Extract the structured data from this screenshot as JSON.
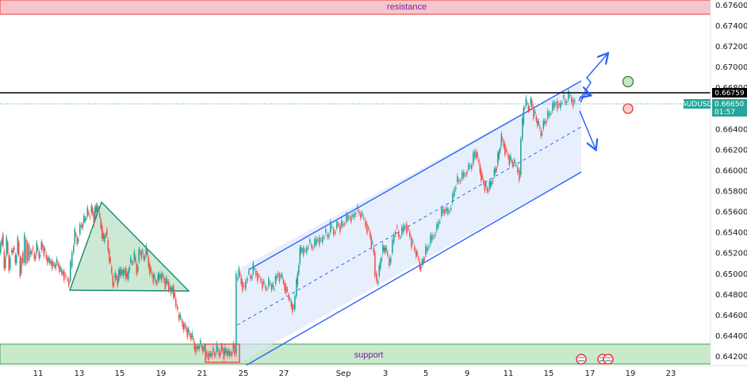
{
  "chart_data": {
    "type": "candlestick",
    "symbol": "AUDUSD",
    "price_axis": {
      "ticks": [
        "0.67600",
        "0.67400",
        "0.67200",
        "0.67000",
        "0.66800",
        "0.66600",
        "0.66400",
        "0.66200",
        "0.66000",
        "0.65800",
        "0.65600",
        "0.65400",
        "0.65200",
        "0.65000",
        "0.64800",
        "0.64600",
        "0.64400",
        "0.64200"
      ],
      "range": [
        0.6414,
        0.6769
      ]
    },
    "time_axis": {
      "ticks": [
        "11",
        "13",
        "15",
        "19",
        "21",
        "25",
        "27",
        "Sep",
        "3",
        "5",
        "9",
        "11",
        "15",
        "17",
        "19",
        "23"
      ]
    },
    "last_price": {
      "symbol": "AUDUSD",
      "value": 0.6665,
      "label": "0.66650",
      "countdown": "01:57"
    },
    "level_line": {
      "value": 0.66759,
      "label": "0.66759"
    },
    "zones": [
      {
        "name": "resistance",
        "label": "resistance",
        "from": 0.6752,
        "to": 0.677,
        "color": "#f7c5cc"
      },
      {
        "name": "support",
        "label": "support",
        "from": 0.6416,
        "to": 0.6434,
        "color": "#c9e9cc"
      }
    ],
    "series_path": [
      [
        0,
        0.652
      ],
      [
        3,
        0.6538
      ],
      [
        6,
        0.6505
      ],
      [
        9,
        0.653
      ],
      [
        12,
        0.6505
      ],
      [
        14,
        0.652
      ],
      [
        17,
        0.6525
      ],
      [
        20,
        0.651
      ],
      [
        23,
        0.653
      ],
      [
        26,
        0.65
      ],
      [
        28,
        0.652
      ],
      [
        30,
        0.651
      ],
      [
        32,
        0.6533
      ],
      [
        34,
        0.6512
      ],
      [
        36,
        0.6527
      ],
      [
        38,
        0.6518
      ],
      [
        41,
        0.6525
      ],
      [
        44,
        0.6514
      ],
      [
        47,
        0.6525
      ],
      [
        50,
        0.6517
      ],
      [
        53,
        0.6528
      ],
      [
        56,
        0.6522
      ],
      [
        59,
        0.6515
      ],
      [
        62,
        0.651
      ],
      [
        65,
        0.6512
      ],
      [
        68,
        0.6507
      ],
      [
        71,
        0.651
      ],
      [
        74,
        0.6508
      ],
      [
        77,
        0.65
      ],
      [
        80,
        0.6502
      ],
      [
        84,
        0.6495
      ],
      [
        88,
        0.6493
      ],
      [
        92,
        0.652
      ],
      [
        95,
        0.6538
      ],
      [
        98,
        0.6531
      ],
      [
        102,
        0.6545
      ],
      [
        105,
        0.6549
      ],
      [
        108,
        0.6553
      ],
      [
        111,
        0.6559
      ],
      [
        113,
        0.6555
      ],
      [
        116,
        0.6563
      ],
      [
        119,
        0.6552
      ],
      [
        122,
        0.6566
      ],
      [
        125,
        0.6558
      ],
      [
        128,
        0.6546
      ],
      [
        131,
        0.6531
      ],
      [
        134,
        0.6542
      ],
      [
        137,
        0.6522
      ],
      [
        140,
        0.6506
      ],
      [
        143,
        0.649
      ],
      [
        146,
        0.6498
      ],
      [
        149,
        0.6493
      ],
      [
        152,
        0.6504
      ],
      [
        155,
        0.6497
      ],
      [
        158,
        0.6505
      ],
      [
        161,
        0.6494
      ],
      [
        164,
        0.6511
      ],
      [
        167,
        0.651
      ],
      [
        170,
        0.6516
      ],
      [
        173,
        0.6502
      ],
      [
        176,
        0.6521
      ],
      [
        179,
        0.652
      ],
      [
        182,
        0.6514
      ],
      [
        185,
        0.6522
      ],
      [
        188,
        0.6509
      ],
      [
        191,
        0.65
      ],
      [
        194,
        0.6496
      ],
      [
        197,
        0.6491
      ],
      [
        200,
        0.6494
      ],
      [
        203,
        0.65
      ],
      [
        206,
        0.6496
      ],
      [
        209,
        0.649
      ],
      [
        212,
        0.6492
      ],
      [
        215,
        0.648
      ],
      [
        218,
        0.6488
      ],
      [
        221,
        0.6475
      ],
      [
        223,
        0.6468
      ],
      [
        225,
        0.646
      ],
      [
        228,
        0.6455
      ],
      [
        231,
        0.6451
      ],
      [
        234,
        0.6448
      ],
      [
        237,
        0.6443
      ],
      [
        240,
        0.644
      ],
      [
        243,
        0.6437
      ],
      [
        246,
        0.6429
      ],
      [
        249,
        0.6427
      ],
      [
        252,
        0.6432
      ],
      [
        255,
        0.6428
      ],
      [
        258,
        0.6425
      ],
      [
        262,
        0.6422
      ],
      [
        265,
        0.642
      ],
      [
        268,
        0.6425
      ],
      [
        271,
        0.6421
      ],
      [
        274,
        0.6427
      ],
      [
        277,
        0.6423
      ],
      [
        280,
        0.6428
      ],
      [
        283,
        0.6422
      ],
      [
        286,
        0.6425
      ],
      [
        289,
        0.642
      ],
      [
        292,
        0.6424
      ],
      [
        295,
        0.643
      ],
      [
        297,
        0.6422
      ],
      [
        299,
        0.6495
      ],
      [
        302,
        0.65
      ],
      [
        305,
        0.6492
      ],
      [
        309,
        0.6485
      ],
      [
        313,
        0.65
      ],
      [
        317,
        0.6495
      ],
      [
        320,
        0.6505
      ],
      [
        324,
        0.65
      ],
      [
        328,
        0.6495
      ],
      [
        332,
        0.649
      ],
      [
        336,
        0.6485
      ],
      [
        340,
        0.649
      ],
      [
        345,
        0.6485
      ],
      [
        350,
        0.65
      ],
      [
        355,
        0.6496
      ],
      [
        360,
        0.6488
      ],
      [
        365,
        0.6475
      ],
      [
        368,
        0.647
      ],
      [
        371,
        0.6465
      ],
      [
        373,
        0.6478
      ],
      [
        376,
        0.65
      ],
      [
        379,
        0.652
      ],
      [
        382,
        0.6525
      ],
      [
        386,
        0.652
      ],
      [
        390,
        0.653
      ],
      [
        394,
        0.6525
      ],
      [
        398,
        0.6528
      ],
      [
        402,
        0.6535
      ],
      [
        406,
        0.653
      ],
      [
        410,
        0.654
      ],
      [
        414,
        0.6535
      ],
      [
        418,
        0.6545
      ],
      [
        422,
        0.654
      ],
      [
        426,
        0.6548
      ],
      [
        430,
        0.6545
      ],
      [
        434,
        0.6548
      ],
      [
        438,
        0.6552
      ],
      [
        442,
        0.6556
      ],
      [
        446,
        0.6554
      ],
      [
        450,
        0.6562
      ],
      [
        454,
        0.6558
      ],
      [
        458,
        0.6554
      ],
      [
        462,
        0.6548
      ],
      [
        466,
        0.654
      ],
      [
        469,
        0.653
      ],
      [
        472,
        0.652
      ],
      [
        474,
        0.65
      ],
      [
        476,
        0.649
      ],
      [
        479,
        0.6505
      ],
      [
        482,
        0.652
      ],
      [
        485,
        0.6525
      ],
      [
        488,
        0.652
      ],
      [
        492,
        0.651
      ],
      [
        496,
        0.653
      ],
      [
        500,
        0.6545
      ],
      [
        504,
        0.6535
      ],
      [
        508,
        0.654
      ],
      [
        512,
        0.6548
      ],
      [
        516,
        0.654
      ],
      [
        520,
        0.653
      ],
      [
        524,
        0.6522
      ],
      [
        527,
        0.6515
      ],
      [
        530,
        0.6507
      ],
      [
        533,
        0.651
      ],
      [
        536,
        0.6518
      ],
      [
        540,
        0.6525
      ],
      [
        544,
        0.6532
      ],
      [
        548,
        0.6538
      ],
      [
        552,
        0.6545
      ],
      [
        556,
        0.6555
      ],
      [
        560,
        0.6562
      ],
      [
        564,
        0.6558
      ],
      [
        568,
        0.6562
      ],
      [
        572,
        0.6575
      ],
      [
        576,
        0.6588
      ],
      [
        580,
        0.659
      ],
      [
        584,
        0.6593
      ],
      [
        588,
        0.6598
      ],
      [
        592,
        0.6603
      ],
      [
        596,
        0.6606
      ],
      [
        600,
        0.6618
      ],
      [
        603,
        0.661
      ],
      [
        606,
        0.66
      ],
      [
        609,
        0.659
      ],
      [
        612,
        0.6585
      ],
      [
        615,
        0.658
      ],
      [
        618,
        0.6584
      ],
      [
        621,
        0.659
      ],
      [
        624,
        0.6598
      ],
      [
        627,
        0.6605
      ],
      [
        630,
        0.6618
      ],
      [
        633,
        0.663
      ],
      [
        636,
        0.6625
      ],
      [
        640,
        0.6615
      ],
      [
        643,
        0.661
      ],
      [
        646,
        0.6608
      ],
      [
        650,
        0.6605
      ],
      [
        654,
        0.66
      ],
      [
        656,
        0.6595
      ],
      [
        658,
        0.663
      ],
      [
        661,
        0.666
      ],
      [
        664,
        0.6665
      ],
      [
        667,
        0.666
      ],
      [
        670,
        0.6667
      ],
      [
        674,
        0.6655
      ],
      [
        677,
        0.6648
      ],
      [
        680,
        0.6642
      ],
      [
        683,
        0.6635
      ],
      [
        686,
        0.6645
      ],
      [
        690,
        0.665
      ],
      [
        694,
        0.6655
      ],
      [
        698,
        0.666
      ],
      [
        702,
        0.6667
      ],
      [
        706,
        0.666
      ],
      [
        710,
        0.667
      ],
      [
        714,
        0.6665
      ],
      [
        718,
        0.6672
      ],
      [
        722,
        0.6668
      ],
      [
        726,
        0.6665
      ]
    ]
  }
}
